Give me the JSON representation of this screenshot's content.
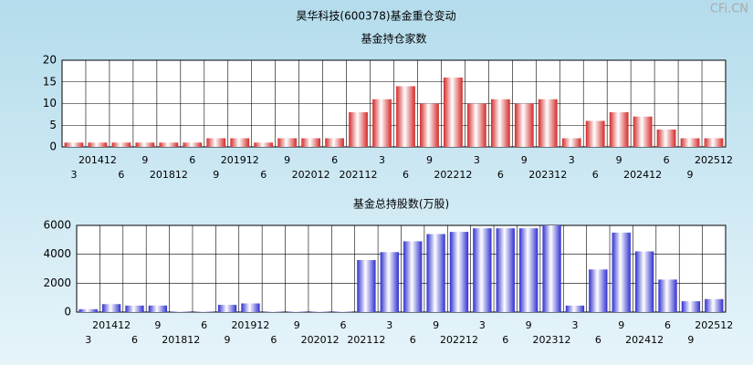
{
  "title": "昊华科技(600378)基金重仓变动",
  "watermark": "CFi.CN",
  "chart_data": [
    {
      "type": "bar",
      "title": "基金持仓家数",
      "color": "#d42a2a",
      "categories": [
        "3",
        "201412",
        "6",
        "9",
        "201812",
        "6",
        "9",
        "201912",
        "6",
        "9",
        "202012",
        "6",
        "202112",
        "3",
        "6",
        "9",
        "202212",
        "3",
        "6",
        "9",
        "202312",
        "3",
        "6",
        "9",
        "202412",
        "6",
        "9",
        "202512"
      ],
      "values": [
        1,
        1,
        1,
        1,
        1,
        1,
        2,
        2,
        1,
        2,
        2,
        2,
        8,
        11,
        14,
        10,
        16,
        10,
        11,
        10,
        11,
        2,
        6,
        8,
        7,
        4,
        2,
        2
      ],
      "ylim": [
        0,
        20
      ],
      "yticks": [
        0,
        5,
        10,
        15,
        20
      ],
      "grid": true
    },
    {
      "type": "bar",
      "title": "基金总持股数(万股)",
      "color": "#3030d0",
      "categories": [
        "3",
        "201412",
        "6",
        "9",
        "201812",
        "6",
        "9",
        "201912",
        "6",
        "9",
        "202012",
        "6",
        "202112",
        "3",
        "6",
        "9",
        "202212",
        "3",
        "6",
        "9",
        "202312",
        "3",
        "6",
        "9",
        "202412",
        "6",
        "9",
        "202512"
      ],
      "values": [
        200,
        550,
        450,
        450,
        30,
        30,
        500,
        600,
        30,
        30,
        30,
        30,
        3600,
        4150,
        4900,
        5400,
        5550,
        5800,
        5800,
        5800,
        6000,
        450,
        2950,
        5500,
        4200,
        2250,
        750,
        900
      ],
      "ylim": [
        0,
        6000
      ],
      "yticks": [
        0,
        2000,
        4000,
        6000
      ],
      "grid": true
    }
  ]
}
